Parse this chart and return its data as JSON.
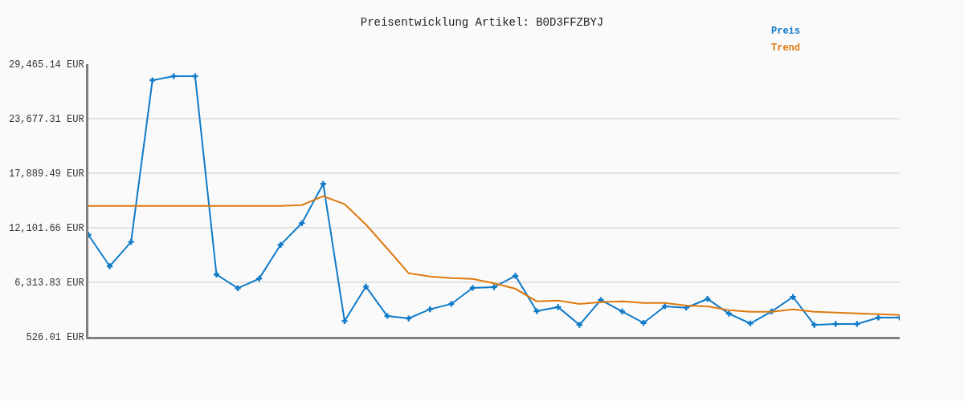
{
  "chart_data": {
    "type": "line",
    "title": "Preisentwicklung Artikel: B0D3FFZBYJ",
    "categories": [
      null,
      null,
      null,
      null,
      null,
      null,
      null,
      null,
      null,
      null,
      null,
      null,
      null,
      null,
      null,
      null,
      null,
      null,
      null,
      null,
      null,
      null,
      null,
      null,
      null,
      null,
      null,
      null,
      null,
      null,
      null,
      null,
      null,
      null,
      null,
      null,
      null,
      null,
      null
    ],
    "series": [
      {
        "name": "Preis",
        "color": "#0f7ac8",
        "marker": "cross",
        "values": [
          11360,
          8020,
          10600,
          27760,
          28190,
          28190,
          7140,
          5690,
          6710,
          10290,
          12590,
          16760,
          2200,
          5860,
          2740,
          2480,
          3450,
          4020,
          5720,
          5800,
          7000,
          3250,
          3680,
          1800,
          4440,
          3220,
          2000,
          3760,
          3620,
          4550,
          2990,
          1950,
          3220,
          4760,
          1800,
          1890,
          1890,
          2570,
          2570
        ]
      },
      {
        "name": "Trend",
        "color": "#dd7a0e",
        "marker": "none",
        "values": [
          14430,
          14430,
          14430,
          14430,
          14430,
          14430,
          14430,
          14430,
          14430,
          14430,
          14510,
          15450,
          14610,
          12440,
          9890,
          7280,
          6940,
          6770,
          6680,
          6200,
          5630,
          4300,
          4380,
          4020,
          4210,
          4300,
          4130,
          4130,
          3850,
          3760,
          3360,
          3190,
          3190,
          3450,
          3190,
          3110,
          3020,
          2940,
          2850
        ]
      }
    ],
    "ylim": [
      526.01,
      29465.14
    ],
    "yticks": [
      {
        "value": 526.01,
        "label": "526.01 EUR"
      },
      {
        "value": 6313.83,
        "label": "6,313.83 EUR"
      },
      {
        "value": 12101.66,
        "label": "12,101.66 EUR"
      },
      {
        "value": 17889.49,
        "label": "17,889.49 EUR"
      },
      {
        "value": 23677.31,
        "label": "23,677.31 EUR"
      },
      {
        "value": 29465.14,
        "label": "29,465.14 EUR"
      }
    ],
    "grid": "y",
    "legend": "top right",
    "tick_labels": "y",
    "line_style": "solid"
  }
}
